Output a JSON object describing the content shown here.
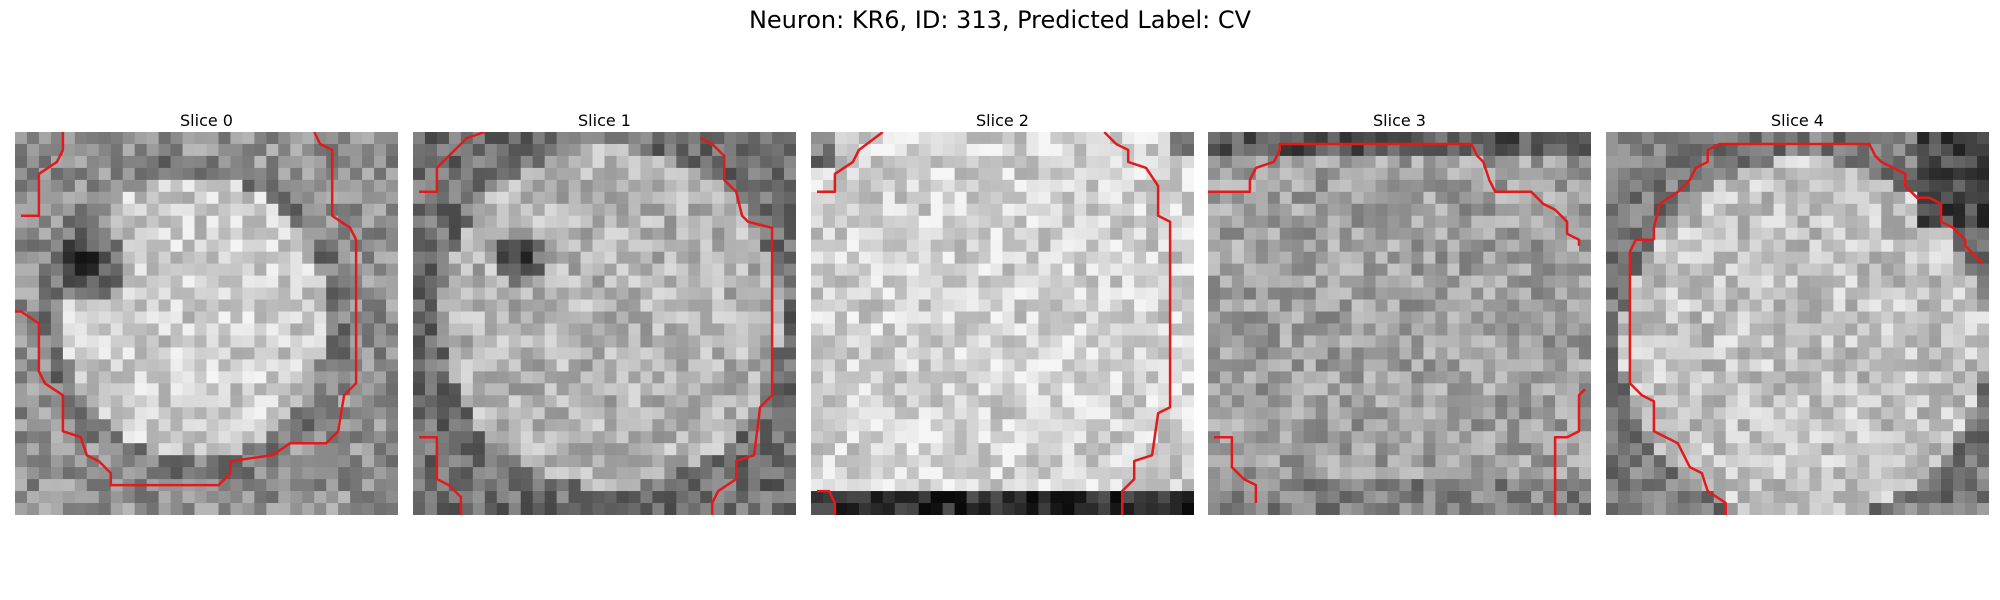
{
  "figure": {
    "title": "Neuron: KR6, ID: 313, Predicted Label: CV"
  },
  "panels": [
    {
      "title": "Slice 0",
      "image": "grayscale-microscopy-slice-with-red-segmentation-contour"
    },
    {
      "title": "Slice 1",
      "image": "grayscale-microscopy-slice-with-red-segmentation-contour"
    },
    {
      "title": "Slice 2",
      "image": "grayscale-microscopy-slice-with-red-segmentation-contour"
    },
    {
      "title": "Slice 3",
      "image": "grayscale-microscopy-slice-with-red-segmentation-contour"
    },
    {
      "title": "Slice 4",
      "image": "grayscale-microscopy-slice-with-red-segmentation-contour"
    }
  ],
  "colors": {
    "contour": "#e31a1c",
    "background": "#ffffff"
  }
}
